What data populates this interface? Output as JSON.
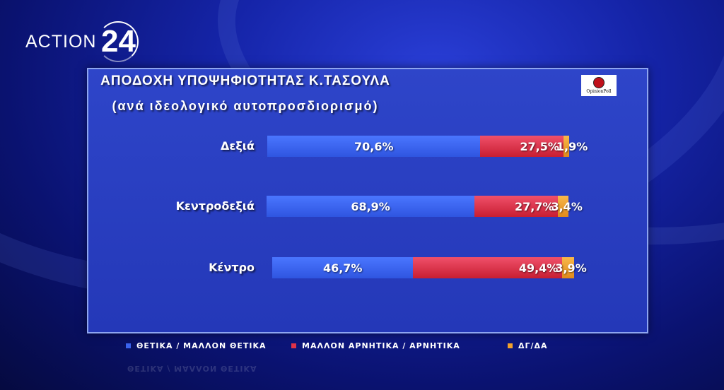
{
  "logo": {
    "text": "ACTION",
    "number": "24"
  },
  "badge": {
    "text": "OpinionPoll"
  },
  "chart_data": {
    "type": "bar",
    "stacked": true,
    "orientation": "horizontal",
    "title": "ΑΠΟΔΟΧΗ ΥΠΟΨΗΦΙΟΤΗΤΑΣ Κ.ΤΑΣΟΥΛΑ",
    "subtitle": "(ανά ιδεολογικό αυτοπροσδιορισμό)",
    "categories": [
      "Δεξιά",
      "Κεντροδεξιά",
      "Κέντρο"
    ],
    "series": [
      {
        "name": "ΘΕΤΙΚΑ / ΜΑΛΛΟΝ ΘΕΤΙΚΑ",
        "color": "#3a63ee",
        "values": [
          70.6,
          68.9,
          46.7
        ],
        "labels": [
          "70,6%",
          "68,9%",
          "46,7%"
        ]
      },
      {
        "name": "ΜΑΛΛΟΝ ΑΡΝΗΤΙΚΑ / ΑΡΝΗΤΙΚΑ",
        "color": "#e03348",
        "values": [
          27.5,
          27.7,
          49.4
        ],
        "labels": [
          "27,5%",
          "27,7%",
          "49,4%"
        ]
      },
      {
        "name": "ΔΓ/ΔΑ",
        "color": "#f2a12c",
        "values": [
          1.9,
          3.4,
          3.9
        ],
        "labels": [
          "1,9%",
          "3,4%",
          "3,9%"
        ]
      }
    ],
    "legend_position": "bottom",
    "grid": false
  },
  "reflection_text": "ΘΕΤΙΚΑ / ΜΑΛΛΟΝ ΘΕΤΙΚΑ"
}
